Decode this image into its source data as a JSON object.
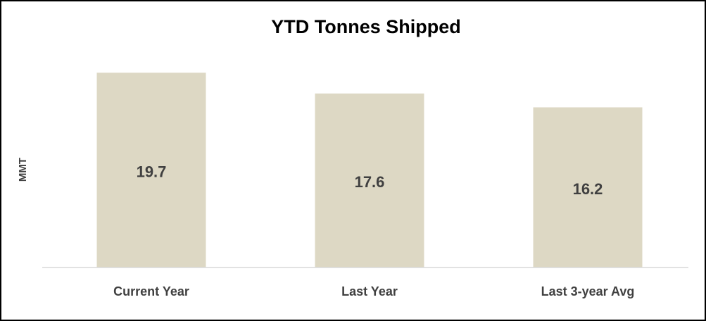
{
  "chart_data": {
    "type": "bar",
    "title": "YTD Tonnes Shipped",
    "y_label": "MMT",
    "categories": [
      "Current Year",
      "Last Year",
      "Last 3-year Avg"
    ],
    "values": [
      19.7,
      17.6,
      16.2
    ],
    "color": "#ddd8c4",
    "ylim": [
      0,
      22
    ]
  }
}
